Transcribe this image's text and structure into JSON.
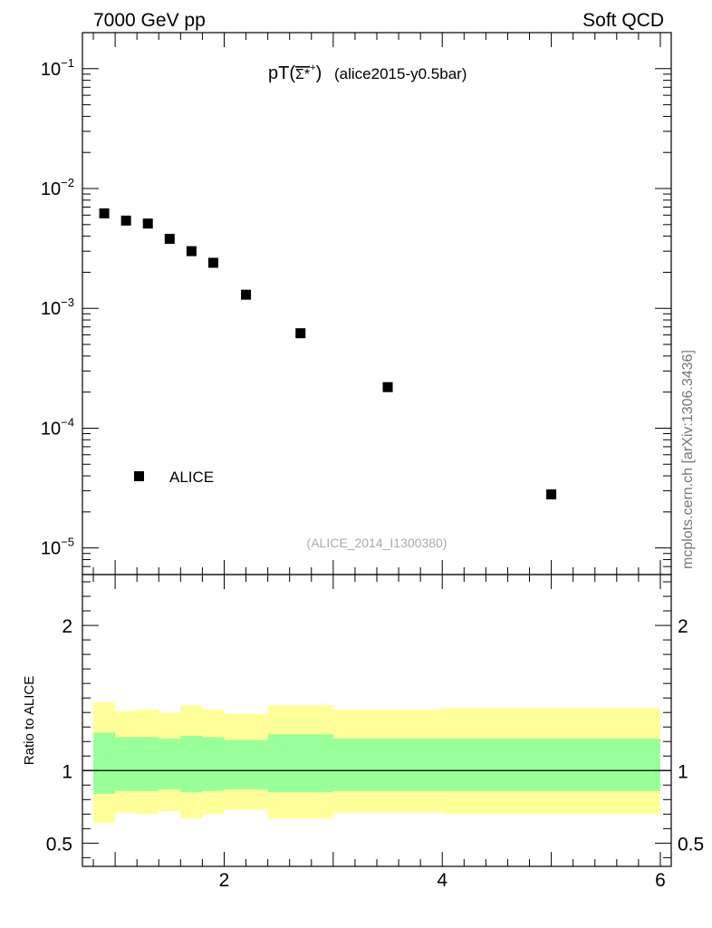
{
  "header": {
    "left_label": "7000 GeV pp",
    "right_label": "Soft QCD"
  },
  "side_label": "mcplots.cern.ch [arXiv:1306.3436]",
  "chart_data": [
    {
      "type": "scatter",
      "title_main": "pT(",
      "title_sym": "Σ*",
      "title_sup": "+",
      "title_close": ")",
      "title_sub": "(alice2015-y0.5bar)",
      "analysis_id": "(ALICE_2014_I1300380)",
      "xlim": [
        0.7,
        6.1
      ],
      "ylog": true,
      "ylim": [
        6e-06,
        0.2
      ],
      "yticks": [
        {
          "value": 1e-05,
          "mant": "10",
          "exp": "−5"
        },
        {
          "value": 0.0001,
          "mant": "10",
          "exp": "−4"
        },
        {
          "value": 0.001,
          "mant": "10",
          "exp": "−3"
        },
        {
          "value": 0.01,
          "mant": "10",
          "exp": "−2"
        },
        {
          "value": 0.1,
          "mant": "10",
          "exp": "−1"
        }
      ],
      "legend": {
        "label": "ALICE",
        "placement": "bottom-left"
      },
      "series": [
        {
          "name": "ALICE",
          "x": [
            0.9,
            1.1,
            1.3,
            1.5,
            1.7,
            1.9,
            2.2,
            2.7,
            3.5,
            5.0
          ],
          "y": [
            0.0062,
            0.0054,
            0.0051,
            0.0038,
            0.003,
            0.0024,
            0.0013,
            0.00062,
            0.00022,
            2.8e-05
          ]
        }
      ]
    },
    {
      "type": "area",
      "ylabel": "Ratio to ALICE",
      "xlim": [
        0.7,
        6.1
      ],
      "ylim": [
        0.34,
        2.35
      ],
      "xticks": [
        2,
        4,
        6
      ],
      "yticks": [
        0.5,
        1,
        2
      ],
      "bins": [
        {
          "x0": 0.8,
          "x1": 1.0,
          "outer_lo": 0.64,
          "outer_hi": 1.47,
          "inner_lo": 0.84,
          "inner_hi": 1.26
        },
        {
          "x0": 1.0,
          "x1": 1.2,
          "outer_lo": 0.71,
          "outer_hi": 1.41,
          "inner_lo": 0.86,
          "inner_hi": 1.23
        },
        {
          "x0": 1.2,
          "x1": 1.4,
          "outer_lo": 0.7,
          "outer_hi": 1.42,
          "inner_lo": 0.86,
          "inner_hi": 1.23
        },
        {
          "x0": 1.4,
          "x1": 1.6,
          "outer_lo": 0.72,
          "outer_hi": 1.4,
          "inner_lo": 0.87,
          "inner_hi": 1.22
        },
        {
          "x0": 1.6,
          "x1": 1.8,
          "outer_lo": 0.67,
          "outer_hi": 1.45,
          "inner_lo": 0.85,
          "inner_hi": 1.24
        },
        {
          "x0": 1.8,
          "x1": 2.0,
          "outer_lo": 0.7,
          "outer_hi": 1.42,
          "inner_lo": 0.86,
          "inner_hi": 1.23
        },
        {
          "x0": 2.0,
          "x1": 2.4,
          "outer_lo": 0.73,
          "outer_hi": 1.39,
          "inner_lo": 0.87,
          "inner_hi": 1.21
        },
        {
          "x0": 2.4,
          "x1": 3.0,
          "outer_lo": 0.67,
          "outer_hi": 1.45,
          "inner_lo": 0.85,
          "inner_hi": 1.25
        },
        {
          "x0": 3.0,
          "x1": 4.0,
          "outer_lo": 0.71,
          "outer_hi": 1.42,
          "inner_lo": 0.86,
          "inner_hi": 1.22
        },
        {
          "x0": 4.0,
          "x1": 6.0,
          "outer_lo": 0.7,
          "outer_hi": 1.43,
          "inner_lo": 0.86,
          "inner_hi": 1.22
        }
      ],
      "reference_line": 1,
      "colors": {
        "outer": "#ffff99",
        "inner": "#99ff99"
      }
    }
  ]
}
